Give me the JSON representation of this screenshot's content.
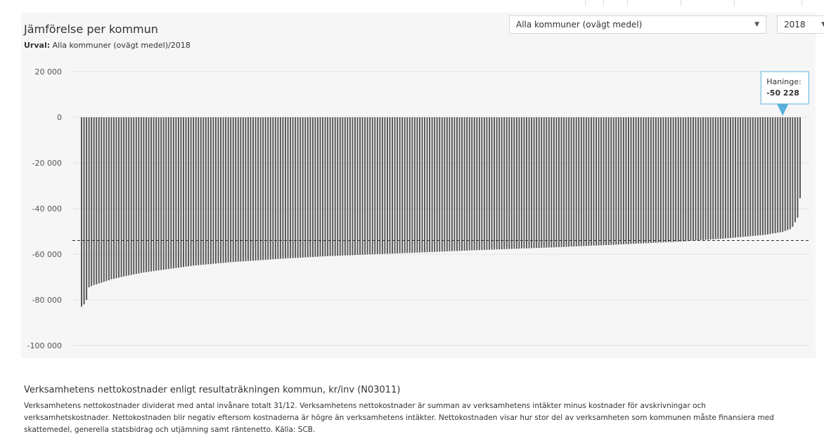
{
  "header": {
    "title": "Jämförelse per kommun",
    "subtitle_label": "Urval:",
    "subtitle_value": "Alla kommuner (ovägt medel)/2018"
  },
  "controls": {
    "municipality_selected": "Alla kommuner (ovägt medel)",
    "year_selected": "2018"
  },
  "tooltip": {
    "name": "Haninge:",
    "value": "-50 228"
  },
  "colors": {
    "bar": "#555555",
    "tooltip_border": "#5ab0dc",
    "reference_line": "#333333"
  },
  "chart_data": {
    "type": "bar",
    "title": "",
    "xlabel": "",
    "ylabel": "",
    "ylim": [
      -100000,
      20000
    ],
    "yticks": [
      20000,
      0,
      -20000,
      -40000,
      -60000,
      -80000,
      -100000
    ],
    "ytick_labels": [
      "20 000",
      "0",
      "-20 000",
      "-40 000",
      "-60 000",
      "-80 000",
      "-100 000"
    ],
    "grid": true,
    "bar_count": 290,
    "sorted_values_profile": [
      [
        0,
        -83000
      ],
      [
        1,
        -82000
      ],
      [
        2,
        -80000
      ],
      [
        3,
        -74500
      ],
      [
        5,
        -73500
      ],
      [
        8,
        -72500
      ],
      [
        12,
        -71000
      ],
      [
        18,
        -69500
      ],
      [
        25,
        -68000
      ],
      [
        35,
        -66500
      ],
      [
        45,
        -65000
      ],
      [
        60,
        -63500
      ],
      [
        80,
        -62000
      ],
      [
        100,
        -60800
      ],
      [
        130,
        -59500
      ],
      [
        160,
        -58200
      ],
      [
        190,
        -57000
      ],
      [
        215,
        -55800
      ],
      [
        240,
        -54500
      ],
      [
        260,
        -53000
      ],
      [
        275,
        -51500
      ],
      [
        282,
        -50228
      ],
      [
        285,
        -49000
      ],
      [
        286,
        -48000
      ],
      [
        287,
        -46000
      ],
      [
        288,
        -44000
      ],
      [
        289,
        -35500
      ]
    ],
    "reference_line": {
      "value": -54000,
      "style": "dashed"
    },
    "highlight": {
      "index": 282,
      "label": "Haninge",
      "value": -50228
    }
  },
  "footer": {
    "title": "Verksamhetens nettokostnader enligt resultaträkningen kommun, kr/inv (N03011)",
    "line1": "Verksamhetens nettokostnader dividerat med antal invånare totalt 31/12. Verksamhetens nettokostnader är summan av verksamhetens intäkter minus kostnader för avskrivningar och",
    "line2": "verksamhetskostnader. Nettokostnaden blir negativ eftersom kostnaderna är högre än verksamhetens intäkter. Nettokostnaden visar hur stor del av verksamheten som kommunen måste finansiera med",
    "line3": "skattemedel, generella statsbidrag och utjämning samt räntenetto. Källa: SCB."
  }
}
